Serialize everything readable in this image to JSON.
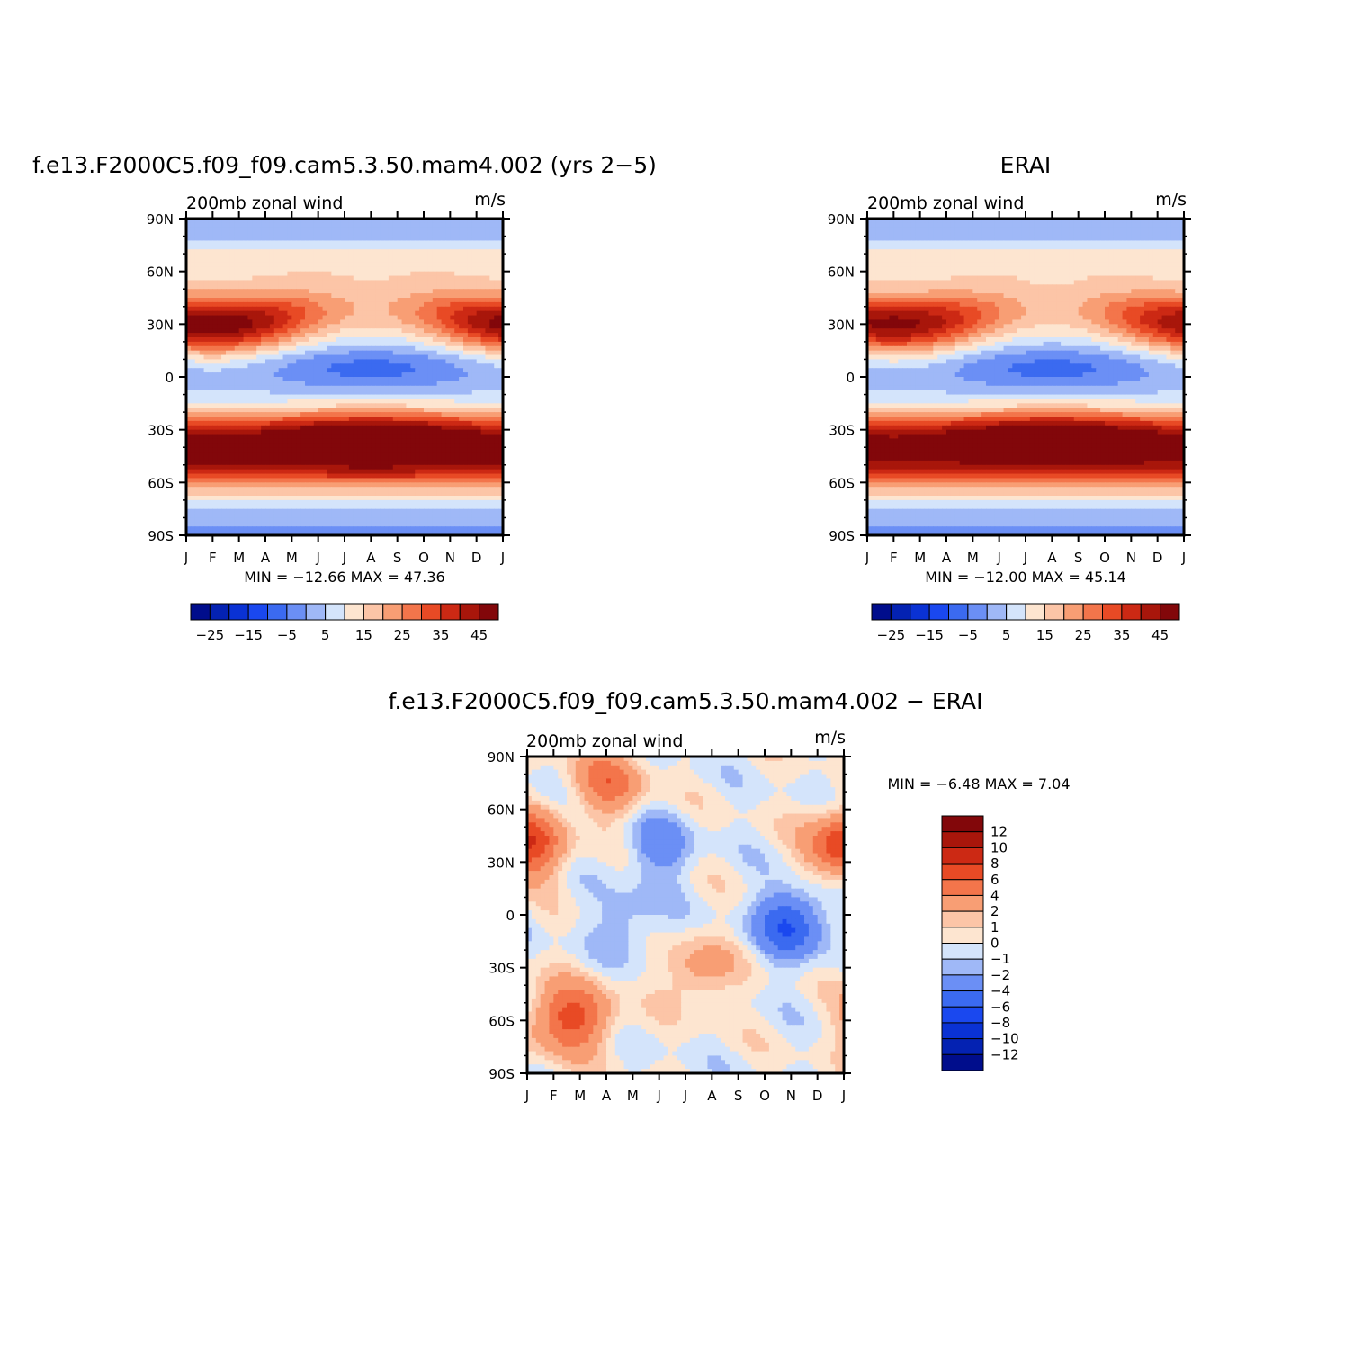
{
  "chart_data": [
    {
      "type": "contour",
      "title": "f.e13.F2000C5.f09_f09.cam5.3.50.mam4.002 (yrs 2−5)",
      "subtitle_left": "200mb zonal wind",
      "subtitle_right": "m/s",
      "x_ticks": [
        "J",
        "F",
        "M",
        "A",
        "M",
        "J",
        "J",
        "A",
        "S",
        "O",
        "N",
        "D",
        "J"
      ],
      "y_ticks": [
        "90N",
        "60N",
        "30N",
        "0",
        "30S",
        "60S",
        "90S"
      ],
      "y_values": [
        90,
        60,
        30,
        0,
        -30,
        -60,
        -90
      ],
      "stats": "MIN = −12.66  MAX =   47.36",
      "colorbar_labels": [
        "−25",
        "−15",
        "−5",
        "5",
        "15",
        "25",
        "35",
        "45"
      ],
      "field": {
        "nh_jet": {
          "lat": 30,
          "peak_mar": 45,
          "peak_dec": 42,
          "trough_jul": 14
        },
        "sh_jet": {
          "lat": -33,
          "peak_jul": 46,
          "lat2": -48,
          "peak2": 32
        },
        "equator": {
          "min_jul": -12,
          "lat": 5
        },
        "high_lat": {
          "north": 2,
          "south": 0
        }
      }
    },
    {
      "type": "contour",
      "title": "ERAI",
      "subtitle_left": "200mb zonal wind",
      "subtitle_right": "m/s",
      "x_ticks": [
        "J",
        "F",
        "M",
        "A",
        "M",
        "J",
        "J",
        "A",
        "S",
        "O",
        "N",
        "D",
        "J"
      ],
      "y_ticks": [
        "90N",
        "60N",
        "30N",
        "0",
        "30S",
        "60S",
        "90S"
      ],
      "y_values": [
        90,
        60,
        30,
        0,
        -30,
        -60,
        -90
      ],
      "stats": "MIN = −12.00  MAX =   45.14",
      "colorbar_labels": [
        "−25",
        "−15",
        "−5",
        "5",
        "15",
        "25",
        "35",
        "45"
      ],
      "field": {
        "nh_jet": {
          "lat": 30,
          "peak_mar": 42,
          "peak_dec": 40,
          "trough_jul": 13
        },
        "sh_jet": {
          "lat": -33,
          "peak_jul": 44,
          "lat2": -48,
          "peak2": 30
        },
        "equator": {
          "min_jul": -12,
          "lat": 5
        },
        "high_lat": {
          "north": 2,
          "south": 0
        }
      }
    },
    {
      "type": "contour",
      "title": "f.e13.F2000C5.f09_f09.cam5.3.50.mam4.002 − ERAI",
      "subtitle_left": "200mb zonal wind",
      "subtitle_right": "m/s",
      "x_ticks": [
        "J",
        "F",
        "M",
        "A",
        "M",
        "J",
        "J",
        "A",
        "S",
        "O",
        "N",
        "D",
        "J"
      ],
      "y_ticks": [
        "90N",
        "60N",
        "30N",
        "0",
        "30S",
        "60S",
        "90S"
      ],
      "y_values": [
        90,
        60,
        30,
        0,
        -30,
        -60,
        -90
      ],
      "stats": "MIN =   −6.48  MAX =    7.04",
      "colorbar_labels": [
        "12",
        "10",
        "8",
        "6",
        "4",
        "2",
        "1",
        "0",
        "−1",
        "−2",
        "−4",
        "−6",
        "−8",
        "−10",
        "−12"
      ],
      "field": {
        "features": [
          {
            "month": 3.1,
            "lat": 75,
            "value": 5
          },
          {
            "month": 0.2,
            "lat": 40,
            "value": 4
          },
          {
            "month": 11.8,
            "lat": 40,
            "value": 4
          },
          {
            "month": 10.0,
            "lat": -5,
            "value": -6
          },
          {
            "month": 5.0,
            "lat": 38,
            "value": -3
          },
          {
            "month": 6.5,
            "lat": -32,
            "value": 3
          },
          {
            "month": 2.0,
            "lat": -58,
            "value": 5
          },
          {
            "month": 1.0,
            "lat": -60,
            "value": 3
          },
          {
            "month": 3.8,
            "lat": -5,
            "value": -2
          }
        ]
      }
    }
  ],
  "colors": {
    "full_scale": [
      "#000d8c",
      "#0422b2",
      "#0a32d4",
      "#1a48ef",
      "#3b6af0",
      "#6b8ff5",
      "#9fb8f7",
      "#d4e4fb",
      "#fde5d0",
      "#fcc5a7",
      "#f89e74",
      "#f3754b",
      "#e84a25",
      "#cc2914",
      "#a8160b",
      "#82070a"
    ],
    "diff_scale": [
      "#000d8c",
      "#0422b2",
      "#0a32d4",
      "#1a48ef",
      "#3b6af0",
      "#6b8ff5",
      "#9fb8f7",
      "#d4e4fb",
      "#fde5d0",
      "#fcc5a7",
      "#f89e74",
      "#f3754b",
      "#e84a25",
      "#cc2914",
      "#a8160b",
      "#82070a"
    ]
  }
}
